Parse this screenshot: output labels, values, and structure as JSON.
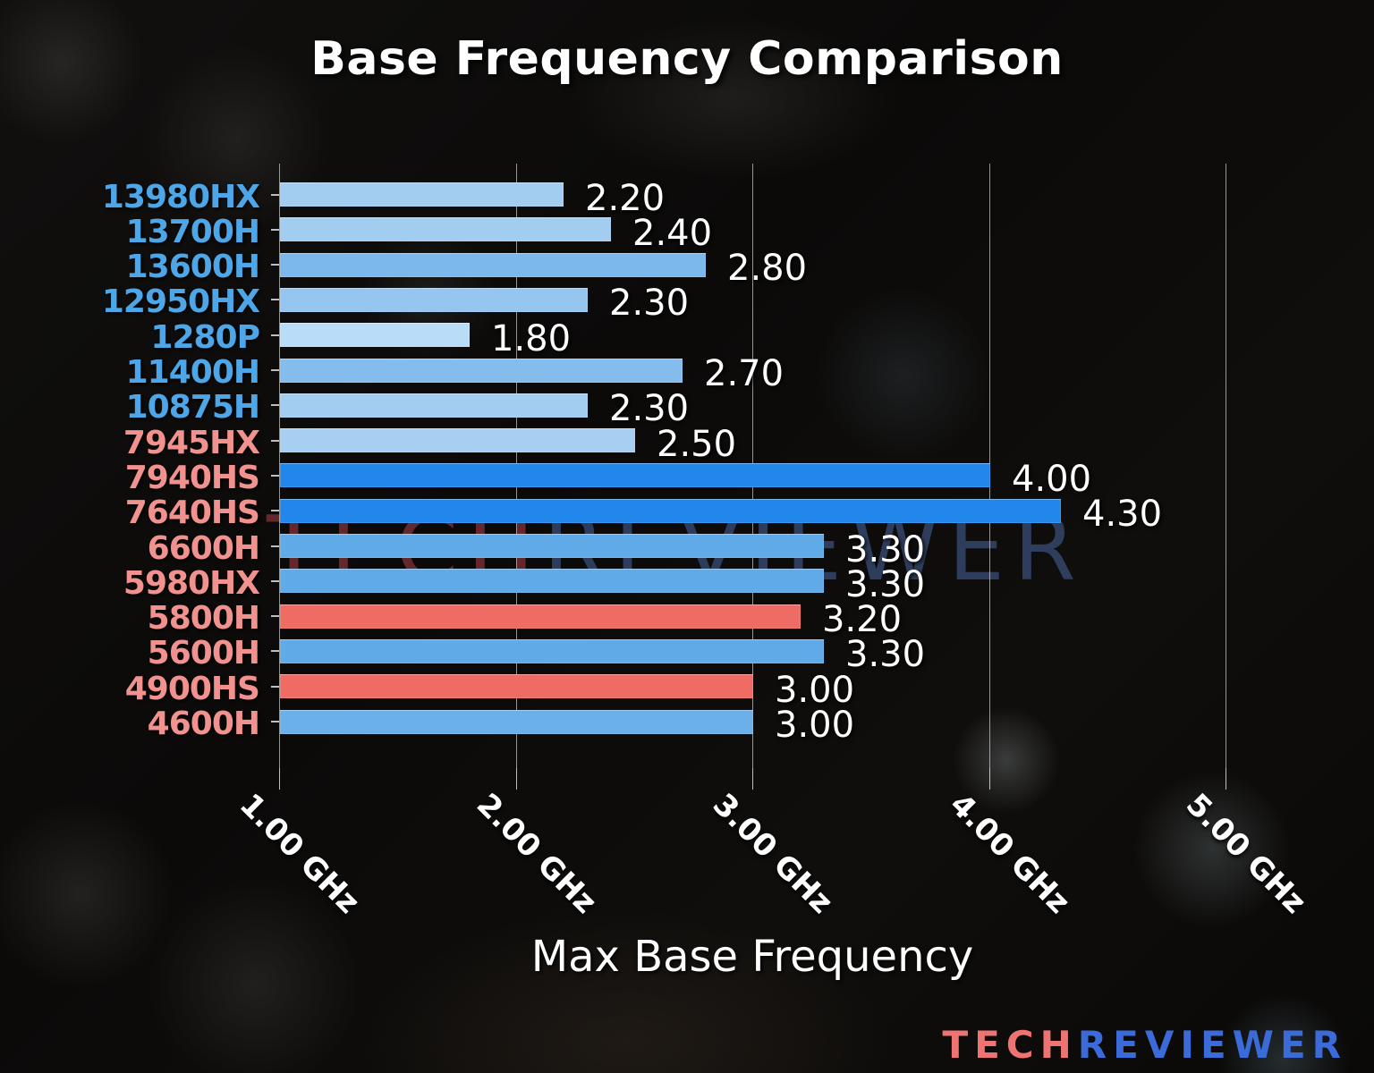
{
  "title": "Base Frequency Comparison",
  "watermark": {
    "part1": "TECH",
    "part2": "REVIEWER"
  },
  "logo": {
    "part1": "TECH",
    "part2": "REVIEWER"
  },
  "colors": {
    "intel_label": "#4da6e8",
    "amd_label": "#f2928f",
    "bar_light_blue": "#a2ccf0",
    "bar_medium_blue": "#61aae8",
    "bar_vivid_blue": "#2287ea",
    "bar_salmon": "#ef6c64",
    "grid": "#dedede",
    "text": "#ffffff"
  },
  "chart_data": {
    "type": "bar",
    "orientation": "horizontal",
    "title": "Base Frequency Comparison",
    "xlabel": "Max Base Frequency",
    "unit": "GHz",
    "xlim": [
      1.0,
      5.3
    ],
    "grid": true,
    "x_ticks": [
      {
        "label": "1.00 GHz",
        "value": 1.0
      },
      {
        "label": "2.00 GHz",
        "value": 2.0
      },
      {
        "label": "3.00 GHz",
        "value": 3.0
      },
      {
        "label": "4.00 GHz",
        "value": 4.0
      },
      {
        "label": "5.00 GHz",
        "value": 5.0
      }
    ],
    "rows": [
      {
        "label": "13980HX",
        "value": 2.2,
        "display": "2.20",
        "bar_color": "#a2ccf0",
        "label_color": "#4da6e8"
      },
      {
        "label": "13700H",
        "value": 2.4,
        "display": "2.40",
        "bar_color": "#a2ccf0",
        "label_color": "#4da6e8"
      },
      {
        "label": "13600H",
        "value": 2.8,
        "display": "2.80",
        "bar_color": "#7cb8ec",
        "label_color": "#4da6e8"
      },
      {
        "label": "12950HX",
        "value": 2.3,
        "display": "2.30",
        "bar_color": "#96c6ef",
        "label_color": "#4da6e8"
      },
      {
        "label": "1280P",
        "value": 1.8,
        "display": "1.80",
        "bar_color": "#b9dcf7",
        "label_color": "#4da6e8"
      },
      {
        "label": "11400H",
        "value": 2.7,
        "display": "2.70",
        "bar_color": "#84bdec",
        "label_color": "#4da6e8"
      },
      {
        "label": "10875H",
        "value": 2.3,
        "display": "2.30",
        "bar_color": "#a2ccf0",
        "label_color": "#4da6e8"
      },
      {
        "label": "7945HX",
        "value": 2.5,
        "display": "2.50",
        "bar_color": "#a6cff1",
        "label_color": "#f2928f"
      },
      {
        "label": "7940HS",
        "value": 4.0,
        "display": "4.00",
        "bar_color": "#2287ea",
        "label_color": "#f2928f"
      },
      {
        "label": "7640HS",
        "value": 4.3,
        "display": "4.30",
        "bar_color": "#2287ea",
        "label_color": "#f2928f"
      },
      {
        "label": "6600H",
        "value": 3.3,
        "display": "3.30",
        "bar_color": "#61aae8",
        "label_color": "#f2928f"
      },
      {
        "label": "5980HX",
        "value": 3.3,
        "display": "3.30",
        "bar_color": "#61aae8",
        "label_color": "#f2928f"
      },
      {
        "label": "5800H",
        "value": 3.2,
        "display": "3.20",
        "bar_color": "#ef6c64",
        "label_color": "#f2928f"
      },
      {
        "label": "5600H",
        "value": 3.3,
        "display": "3.30",
        "bar_color": "#61aae8",
        "label_color": "#f2928f"
      },
      {
        "label": "4900HS",
        "value": 3.0,
        "display": "3.00",
        "bar_color": "#ef6c64",
        "label_color": "#f2928f"
      },
      {
        "label": "4600H",
        "value": 3.0,
        "display": "3.00",
        "bar_color": "#6cb0ea",
        "label_color": "#f2928f"
      }
    ]
  }
}
